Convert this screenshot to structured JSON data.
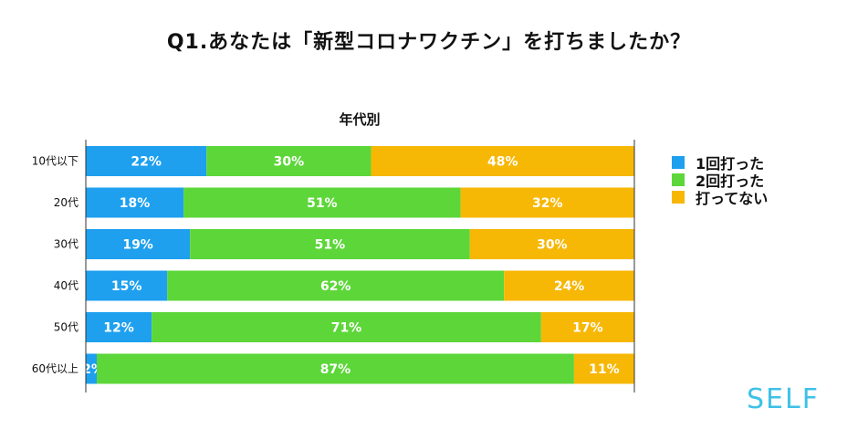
{
  "title": "Q1.あなたは「新型コロナワクチン」を打ちましたか？",
  "brand": "SELF",
  "chart_data": {
    "type": "bar",
    "orientation": "horizontal",
    "stacked": true,
    "normalized": true,
    "subtitle": "年代別",
    "categories": [
      "10代以下",
      "20代",
      "30代",
      "40代",
      "50代",
      "60代以上"
    ],
    "series": [
      {
        "name": "1回打った",
        "color": "#1ea0ef",
        "values": [
          22,
          18,
          19,
          15,
          12,
          2
        ],
        "labels": [
          "22%",
          "18%",
          "19%",
          "15%",
          "12%",
          "2%"
        ]
      },
      {
        "name": "2回打った",
        "color": "#5dd63a",
        "values": [
          30,
          51,
          51,
          62,
          71,
          87
        ],
        "labels": [
          "30%",
          "51%",
          "51%",
          "62%",
          "71%",
          "87%"
        ]
      },
      {
        "name": "打ってない",
        "color": "#f7b705",
        "values": [
          48,
          32,
          30,
          24,
          17,
          11
        ],
        "labels": [
          "48%",
          "32%",
          "30%",
          "24%",
          "17%",
          "11%"
        ]
      }
    ],
    "legend_position": "right",
    "grid": false
  }
}
